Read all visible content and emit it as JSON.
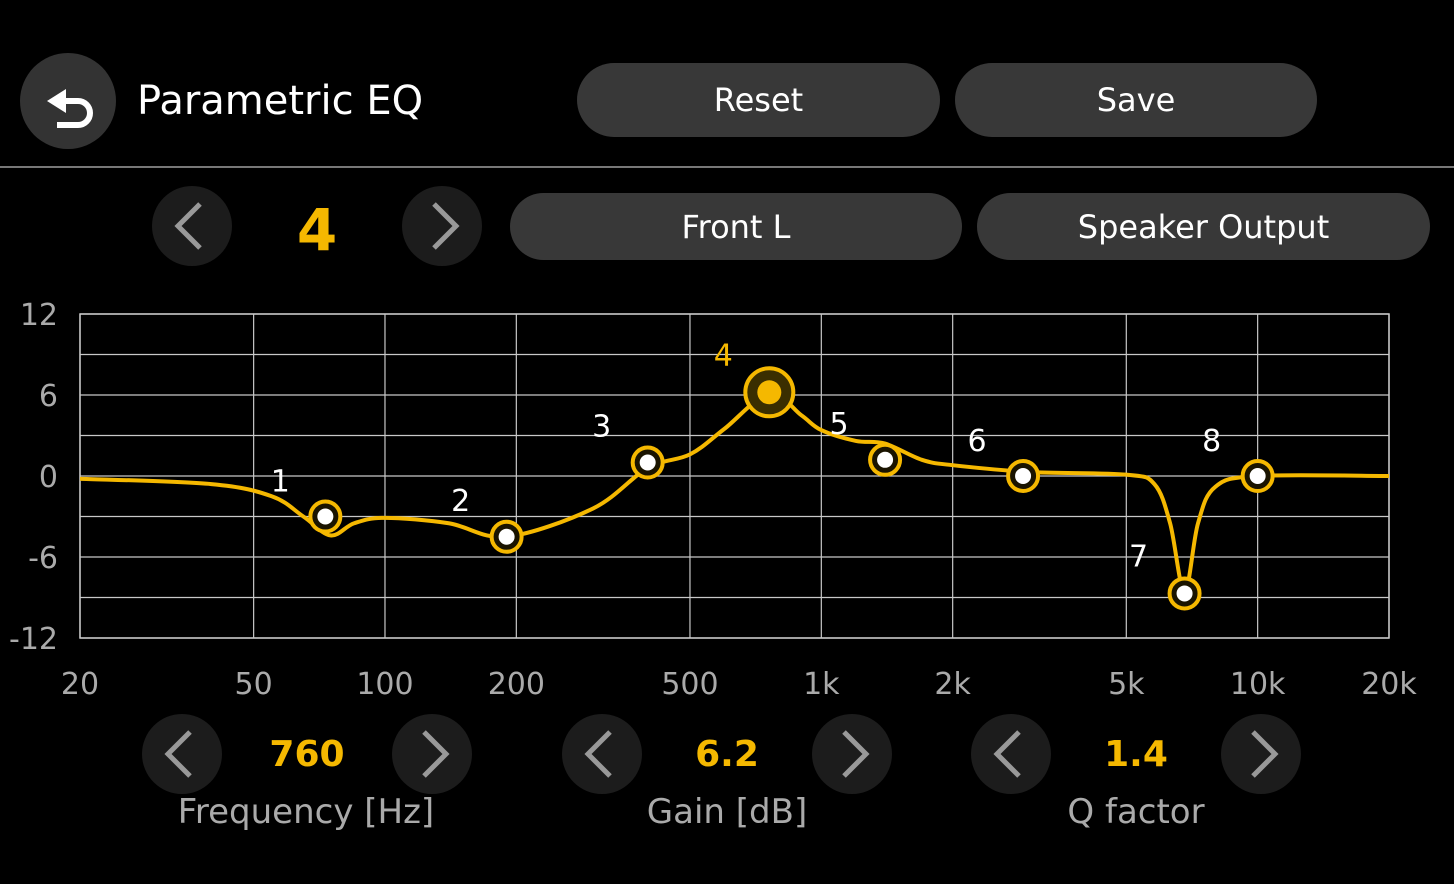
{
  "header": {
    "title": "Parametric EQ",
    "reset_label": "Reset",
    "save_label": "Save",
    "back_icon": "back-arrow-icon"
  },
  "band_selector": {
    "band": "4",
    "channel": "Front L",
    "output": "Speaker Output"
  },
  "controls": {
    "frequency": {
      "value": "760",
      "label": "Frequency [Hz]"
    },
    "gain": {
      "value": "6.2",
      "label": "Gain [dB]"
    },
    "q": {
      "value": "1.4",
      "label": "Q factor"
    }
  },
  "colors": {
    "accent": "#f5b800",
    "button": "#383838",
    "grid": "#c8c8c8"
  },
  "chart_data": {
    "type": "line",
    "x_scale": "log",
    "xlim": [
      20,
      20000
    ],
    "ylim": [
      -12,
      12
    ],
    "grid": true,
    "x_ticks": [
      20,
      50,
      100,
      200,
      500,
      1000,
      2000,
      5000,
      10000,
      20000
    ],
    "x_tick_labels": [
      "20",
      "50",
      "100",
      "200",
      "500",
      "1k",
      "2k",
      "5k",
      "10k",
      "20k"
    ],
    "y_ticks": [
      12,
      6,
      0,
      -6,
      -12
    ],
    "y_tick_labels": [
      "12",
      "6",
      "0",
      "-6",
      "-12"
    ],
    "selected_band": 4,
    "bands": [
      {
        "label": "1",
        "freq": 73,
        "gain": -3
      },
      {
        "label": "2",
        "freq": 190,
        "gain": -4.5
      },
      {
        "label": "3",
        "freq": 400,
        "gain": 1
      },
      {
        "label": "4",
        "freq": 760,
        "gain": 6.2
      },
      {
        "label": "5",
        "freq": 1400,
        "gain": 1.2
      },
      {
        "label": "6",
        "freq": 2900,
        "gain": 0
      },
      {
        "label": "7",
        "freq": 6800,
        "gain": -8.7
      },
      {
        "label": "8",
        "freq": 10000,
        "gain": 0
      }
    ],
    "response_curve": [
      [
        20,
        -0.2
      ],
      [
        40,
        -0.6
      ],
      [
        55,
        -1.5
      ],
      [
        65,
        -3
      ],
      [
        75,
        -4.4
      ],
      [
        85,
        -3.5
      ],
      [
        100,
        -3.1
      ],
      [
        140,
        -3.5
      ],
      [
        190,
        -4.5
      ],
      [
        300,
        -2.4
      ],
      [
        400,
        0.6
      ],
      [
        500,
        1.6
      ],
      [
        600,
        3.5
      ],
      [
        760,
        6.1
      ],
      [
        900,
        4.5
      ],
      [
        1000,
        3.4
      ],
      [
        1200,
        2.6
      ],
      [
        1400,
        2.4
      ],
      [
        1700,
        1.2
      ],
      [
        2000,
        0.8
      ],
      [
        3000,
        0.3
      ],
      [
        5000,
        0.1
      ],
      [
        5800,
        -0.6
      ],
      [
        6300,
        -3.5
      ],
      [
        6800,
        -8.6
      ],
      [
        7300,
        -3.5
      ],
      [
        8000,
        -0.8
      ],
      [
        10000,
        0
      ],
      [
        20000,
        0
      ]
    ]
  }
}
